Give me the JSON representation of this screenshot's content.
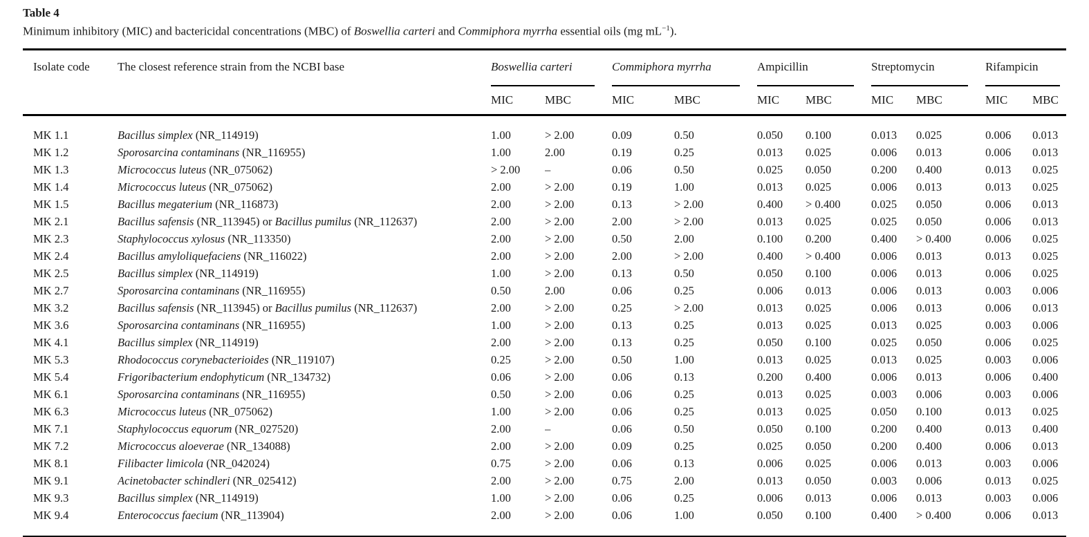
{
  "page": {
    "title": "Table 4",
    "caption_segments": [
      {
        "text": "Minimum inhibitory (MIC) and bactericidal concentrations (MBC) of ",
        "italic": false
      },
      {
        "text": "Boswellia carteri",
        "italic": true
      },
      {
        "text": " and ",
        "italic": false
      },
      {
        "text": "Commiphora myrrha",
        "italic": true
      },
      {
        "text": " essential oils (mg mL",
        "italic": false
      },
      {
        "text": "−1",
        "italic": false,
        "sup": true
      },
      {
        "text": ").",
        "italic": false
      }
    ]
  },
  "colors": {
    "text": "#1b1b1b",
    "rule": "#000000",
    "background": "#ffffff"
  },
  "table": {
    "columns": {
      "isolate_code": "Isolate code",
      "strain": "The closest reference strain from the NCBI base"
    },
    "groups": [
      {
        "label": "Boswellia carteri",
        "italic": true,
        "subcolumns": [
          "MIC",
          "MBC"
        ]
      },
      {
        "label": "Commiphora myrrha",
        "italic": true,
        "subcolumns": [
          "MIC",
          "MBC"
        ]
      },
      {
        "label": "Ampicillin",
        "italic": false,
        "subcolumns": [
          "MIC",
          "MBC"
        ]
      },
      {
        "label": "Streptomycin",
        "italic": false,
        "subcolumns": [
          "MIC",
          "MBC"
        ]
      },
      {
        "label": "Rifampicin",
        "italic": false,
        "subcolumns": [
          "MIC",
          "MBC"
        ]
      }
    ],
    "rows": [
      {
        "code": "MK 1.1",
        "strain": [
          {
            "text": "Bacillus simplex",
            "italic": true
          },
          {
            "text": " (NR_114919)",
            "italic": false
          }
        ],
        "values": [
          "1.00",
          "> 2.00",
          "0.09",
          "0.50",
          "0.050",
          "0.100",
          "0.013",
          "0.025",
          "0.006",
          "0.013"
        ]
      },
      {
        "code": "MK 1.2",
        "strain": [
          {
            "text": "Sporosarcina contaminans",
            "italic": true
          },
          {
            "text": " (NR_116955)",
            "italic": false
          }
        ],
        "values": [
          "1.00",
          "2.00",
          "0.19",
          "0.25",
          "0.013",
          "0.025",
          "0.006",
          "0.013",
          "0.006",
          "0.013"
        ]
      },
      {
        "code": "MK 1.3",
        "strain": [
          {
            "text": "Micrococcus luteus",
            "italic": true
          },
          {
            "text": " (NR_075062)",
            "italic": false
          }
        ],
        "values": [
          "> 2.00",
          "–",
          "0.06",
          "0.50",
          "0.025",
          "0.050",
          "0.200",
          "0.400",
          "0.013",
          "0.025"
        ]
      },
      {
        "code": "MK 1.4",
        "strain": [
          {
            "text": "Micrococcus luteus",
            "italic": true
          },
          {
            "text": " (NR_075062)",
            "italic": false
          }
        ],
        "values": [
          "2.00",
          "> 2.00",
          "0.19",
          "1.00",
          "0.013",
          "0.025",
          "0.006",
          "0.013",
          "0.013",
          "0.025"
        ]
      },
      {
        "code": "MK 1.5",
        "strain": [
          {
            "text": "Bacillus megaterium",
            "italic": true
          },
          {
            "text": " (NR_116873)",
            "italic": false
          }
        ],
        "values": [
          "2.00",
          "> 2.00",
          "0.13",
          "> 2.00",
          "0.400",
          "> 0.400",
          "0.025",
          "0.050",
          "0.006",
          "0.013"
        ]
      },
      {
        "code": "MK 2.1",
        "strain": [
          {
            "text": "Bacillus safensis",
            "italic": true
          },
          {
            "text": " (NR_113945) or ",
            "italic": false
          },
          {
            "text": "Bacillus pumilus",
            "italic": true
          },
          {
            "text": " (NR_112637)",
            "italic": false
          }
        ],
        "values": [
          "2.00",
          "> 2.00",
          "2.00",
          "> 2.00",
          "0.013",
          "0.025",
          "0.025",
          "0.050",
          "0.006",
          "0.013"
        ]
      },
      {
        "code": "MK 2.3",
        "strain": [
          {
            "text": "Staphylococcus xylosus",
            "italic": true
          },
          {
            "text": " (NR_113350)",
            "italic": false
          }
        ],
        "values": [
          "2.00",
          "> 2.00",
          "0.50",
          "2.00",
          "0.100",
          "0.200",
          "0.400",
          "> 0.400",
          "0.006",
          "0.025"
        ]
      },
      {
        "code": "MK 2.4",
        "strain": [
          {
            "text": "Bacillus amyloliquefaciens",
            "italic": true
          },
          {
            "text": " (NR_116022)",
            "italic": false
          }
        ],
        "values": [
          "2.00",
          "> 2.00",
          "2.00",
          "> 2.00",
          "0.400",
          "> 0.400",
          "0.006",
          "0.013",
          "0.013",
          "0.025"
        ]
      },
      {
        "code": "MK 2.5",
        "strain": [
          {
            "text": "Bacillus simplex",
            "italic": true
          },
          {
            "text": " (NR_114919)",
            "italic": false
          }
        ],
        "values": [
          "1.00",
          "> 2.00",
          "0.13",
          "0.50",
          "0.050",
          "0.100",
          "0.006",
          "0.013",
          "0.006",
          "0.025"
        ]
      },
      {
        "code": "MK 2.7",
        "strain": [
          {
            "text": "Sporosarcina contaminans",
            "italic": true
          },
          {
            "text": " (NR_116955)",
            "italic": false
          }
        ],
        "values": [
          "0.50",
          "2.00",
          "0.06",
          "0.25",
          "0.006",
          "0.013",
          "0.006",
          "0.013",
          "0.003",
          "0.006"
        ]
      },
      {
        "code": "MK 3.2",
        "strain": [
          {
            "text": "Bacillus safensis",
            "italic": true
          },
          {
            "text": " (NR_113945) or ",
            "italic": false
          },
          {
            "text": "Bacillus pumilus",
            "italic": true
          },
          {
            "text": " (NR_112637)",
            "italic": false
          }
        ],
        "values": [
          "2.00",
          "> 2.00",
          "0.25",
          "> 2.00",
          "0.013",
          "0.025",
          "0.006",
          "0.013",
          "0.006",
          "0.013"
        ]
      },
      {
        "code": "MK 3.6",
        "strain": [
          {
            "text": "Sporosarcina contaminans",
            "italic": true
          },
          {
            "text": " (NR_116955)",
            "italic": false
          }
        ],
        "values": [
          "1.00",
          "> 2.00",
          "0.13",
          "0.25",
          "0.013",
          "0.025",
          "0.013",
          "0.025",
          "0.003",
          "0.006"
        ]
      },
      {
        "code": "MK 4.1",
        "strain": [
          {
            "text": "Bacillus simplex",
            "italic": true
          },
          {
            "text": " (NR_114919)",
            "italic": false
          }
        ],
        "values": [
          "2.00",
          "> 2.00",
          "0.13",
          "0.25",
          "0.050",
          "0.100",
          "0.025",
          "0.050",
          "0.006",
          "0.025"
        ]
      },
      {
        "code": "MK 5.3",
        "strain": [
          {
            "text": "Rhodococcus corynebacterioides",
            "italic": true
          },
          {
            "text": " (NR_119107)",
            "italic": false
          }
        ],
        "values": [
          "0.25",
          "> 2.00",
          "0.50",
          "1.00",
          "0.013",
          "0.025",
          "0.013",
          "0.025",
          "0.003",
          "0.006"
        ]
      },
      {
        "code": "MK 5.4",
        "strain": [
          {
            "text": "Frigoribacterium endophyticum",
            "italic": true
          },
          {
            "text": " (NR_134732)",
            "italic": false
          }
        ],
        "values": [
          "0.06",
          "> 2.00",
          "0.06",
          "0.13",
          "0.200",
          "0.400",
          "0.006",
          "0.013",
          "0.006",
          "0.400"
        ]
      },
      {
        "code": "MK 6.1",
        "strain": [
          {
            "text": "Sporosarcina contaminans",
            "italic": true
          },
          {
            "text": " (NR_116955)",
            "italic": false
          }
        ],
        "values": [
          "0.50",
          "> 2.00",
          "0.06",
          "0.25",
          "0.013",
          "0.025",
          "0.003",
          "0.006",
          "0.003",
          "0.006"
        ]
      },
      {
        "code": "MK 6.3",
        "strain": [
          {
            "text": "Micrococcus luteus",
            "italic": true
          },
          {
            "text": " (NR_075062)",
            "italic": false
          }
        ],
        "values": [
          "1.00",
          "> 2.00",
          "0.06",
          "0.25",
          "0.013",
          "0.025",
          "0.050",
          "0.100",
          "0.013",
          "0.025"
        ]
      },
      {
        "code": "MK 7.1",
        "strain": [
          {
            "text": "Staphylococcus equorum",
            "italic": true
          },
          {
            "text": " (NR_027520)",
            "italic": false
          }
        ],
        "values": [
          "2.00",
          "–",
          "0.06",
          "0.50",
          "0.050",
          "0.100",
          "0.200",
          "0.400",
          "0.013",
          "0.400"
        ]
      },
      {
        "code": "MK 7.2",
        "strain": [
          {
            "text": "Micrococcus aloeverae",
            "italic": true
          },
          {
            "text": " (NR_134088)",
            "italic": false
          }
        ],
        "values": [
          "2.00",
          "> 2.00",
          "0.09",
          "0.25",
          "0.025",
          "0.050",
          "0.200",
          "0.400",
          "0.006",
          "0.013"
        ]
      },
      {
        "code": "MK 8.1",
        "strain": [
          {
            "text": "Filibacter limicola",
            "italic": true
          },
          {
            "text": " (NR_042024)",
            "italic": false
          }
        ],
        "values": [
          "0.75",
          "> 2.00",
          "0.06",
          "0.13",
          "0.006",
          "0.025",
          "0.006",
          "0.013",
          "0.003",
          "0.006"
        ]
      },
      {
        "code": "MK 9.1",
        "strain": [
          {
            "text": "Acinetobacter schindleri",
            "italic": true
          },
          {
            "text": " (NR_025412)",
            "italic": false
          }
        ],
        "values": [
          "2.00",
          "> 2.00",
          "0.75",
          "2.00",
          "0.013",
          "0.050",
          "0.003",
          "0.006",
          "0.013",
          "0.025"
        ]
      },
      {
        "code": "MK 9.3",
        "strain": [
          {
            "text": "Bacillus simplex",
            "italic": true
          },
          {
            "text": " (NR_114919)",
            "italic": false
          }
        ],
        "values": [
          "1.00",
          "> 2.00",
          "0.06",
          "0.25",
          "0.006",
          "0.013",
          "0.006",
          "0.013",
          "0.003",
          "0.006"
        ]
      },
      {
        "code": "MK 9.4",
        "strain": [
          {
            "text": "Enterococcus faecium",
            "italic": true
          },
          {
            "text": " (NR_113904)",
            "italic": false
          }
        ],
        "values": [
          "2.00",
          "> 2.00",
          "0.06",
          "1.00",
          "0.050",
          "0.100",
          "0.400",
          "> 0.400",
          "0.006",
          "0.013"
        ]
      }
    ]
  }
}
